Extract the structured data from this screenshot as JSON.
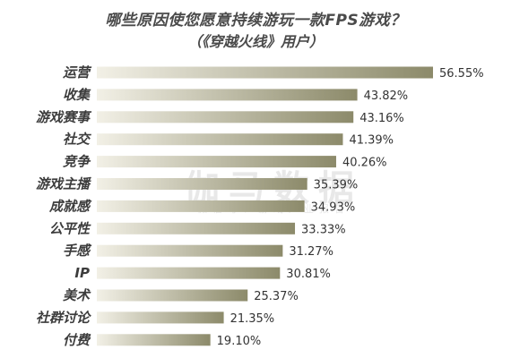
{
  "chart_data": {
    "type": "bar",
    "orientation": "horizontal",
    "title": "哪些原因使您愿意持续游玩一款FPS游戏？",
    "subtitle": "（《穿越火线》用户）",
    "categories": [
      "运营",
      "收集",
      "游戏赛事",
      "社交",
      "竞争",
      "游戏主播",
      "成就感",
      "公平性",
      "手感",
      "IP",
      "美术",
      "社群讨论",
      "付费"
    ],
    "values": [
      56.55,
      43.82,
      43.16,
      41.39,
      40.26,
      35.39,
      34.93,
      33.33,
      31.27,
      30.81,
      25.37,
      21.35,
      19.1
    ],
    "value_labels": [
      "56.55%",
      "43.82%",
      "43.16%",
      "41.39%",
      "40.26%",
      "35.39%",
      "34.93%",
      "33.33%",
      "31.27%",
      "30.81%",
      "25.37%",
      "21.35%",
      "19.10%"
    ],
    "unit": "%",
    "grid": false,
    "bar_color_left": "#f2f0e6",
    "bar_color_right": "#8c8a6a"
  },
  "watermark": {
    "text": "伽马数据",
    "subtext": "微信号：游戏产业报告"
  }
}
